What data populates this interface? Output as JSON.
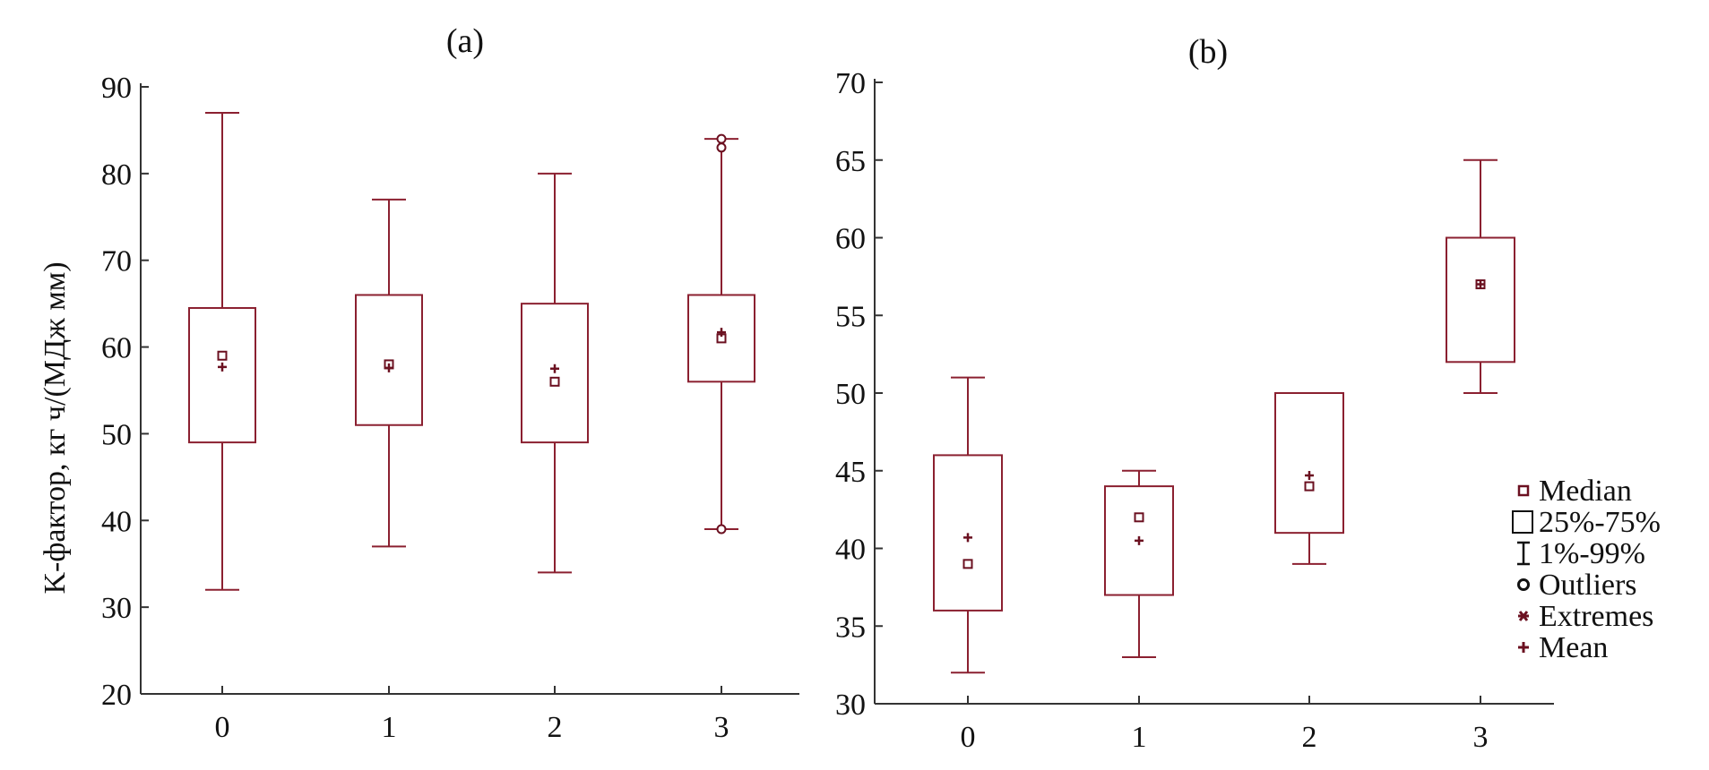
{
  "colors": {
    "box": "#8b2030",
    "axis": "#333333",
    "marker": "#6b1020",
    "background": "#ffffff"
  },
  "chart_data": [
    {
      "type": "box",
      "panel_label": "(a)",
      "ylabel": "K-фактор,  кг ч/(МДж мм)",
      "xlabel": "",
      "ylim": [
        20,
        90
      ],
      "yticks": [
        20,
        30,
        40,
        50,
        60,
        70,
        80,
        90
      ],
      "categories": [
        "0",
        "1",
        "2",
        "3"
      ],
      "boxes": [
        {
          "category": "0",
          "whisker_low": 32,
          "q1": 49,
          "median": 59,
          "q3": 64.5,
          "whisker_high": 87,
          "mean": 57.7,
          "outliers": []
        },
        {
          "category": "1",
          "whisker_low": 37,
          "q1": 51,
          "median": 58,
          "q3": 66,
          "whisker_high": 77,
          "mean": 57.6,
          "outliers": []
        },
        {
          "category": "2",
          "whisker_low": 34,
          "q1": 49,
          "median": 56,
          "q3": 65,
          "whisker_high": 80,
          "mean": 57.5,
          "outliers": []
        },
        {
          "category": "3",
          "whisker_low": 39,
          "q1": 56,
          "median": 61,
          "q3": 66,
          "whisker_high": 84,
          "mean": 61.7,
          "outliers": [
            39,
            83,
            84
          ]
        }
      ]
    },
    {
      "type": "box",
      "panel_label": "(b)",
      "ylabel": "",
      "xlabel": "",
      "ylim": [
        30,
        70
      ],
      "yticks": [
        30,
        35,
        40,
        45,
        50,
        55,
        60,
        65,
        70
      ],
      "categories": [
        "0",
        "1",
        "2",
        "3"
      ],
      "boxes": [
        {
          "category": "0",
          "whisker_low": 32,
          "q1": 36,
          "median": 39,
          "q3": 46,
          "whisker_high": 51,
          "mean": 40.7,
          "outliers": []
        },
        {
          "category": "1",
          "whisker_low": 33,
          "q1": 37,
          "median": 42,
          "q3": 44,
          "whisker_high": 45,
          "mean": 40.5,
          "outliers": []
        },
        {
          "category": "2",
          "whisker_low": 39,
          "q1": 41,
          "median": 44,
          "q3": 50,
          "whisker_high": 50,
          "mean": 44.7,
          "outliers": []
        },
        {
          "category": "3",
          "whisker_low": 50,
          "q1": 52,
          "median": 57,
          "q3": 60,
          "whisker_high": 65,
          "mean": 57,
          "outliers": []
        }
      ],
      "legend": {
        "position": "right",
        "items": [
          {
            "label": "Median",
            "icon": "small-square-icon"
          },
          {
            "label": "25%-75%",
            "icon": "box-icon"
          },
          {
            "label": "1%-99%",
            "icon": "whisker-icon"
          },
          {
            "label": "Outliers",
            "icon": "circle-icon"
          },
          {
            "label": "Extremes",
            "icon": "star-icon"
          },
          {
            "label": "Mean",
            "icon": "plus-icon"
          }
        ]
      }
    }
  ]
}
